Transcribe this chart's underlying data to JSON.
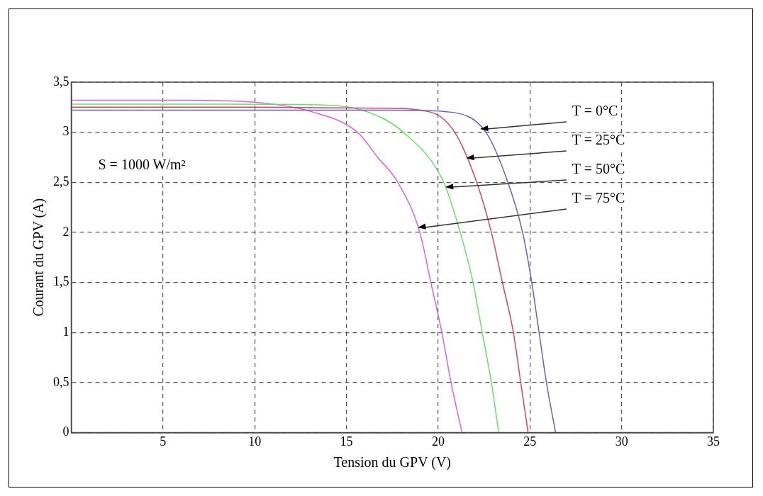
{
  "chart_data": {
    "type": "line",
    "xlabel": "Tension du GPV (V)",
    "ylabel": "Courant du GPV (A)",
    "xlim": [
      0,
      35
    ],
    "xticks": [
      5,
      10,
      15,
      20,
      25,
      30,
      35
    ],
    "ylim": [
      0,
      3.5
    ],
    "yticks": [
      0,
      {
        "value": 0.5,
        "label": "0,5"
      },
      1,
      {
        "value": 1.5,
        "label": "1,5"
      },
      2,
      {
        "value": 2.5,
        "label": "2,5"
      },
      3,
      {
        "value": 3.5,
        "label": "3,5"
      }
    ],
    "grid": true,
    "legend": false,
    "marker": "none",
    "line_style": "solid",
    "series": [
      {
        "name": "T = 0°C",
        "color": "#6b5bd6",
        "x": [
          0,
          10,
          18,
          20.7,
          22.6,
          23.8,
          24.6,
          25.1,
          25.5,
          25.9,
          26.4
        ],
        "values": [
          3.22,
          3.22,
          3.22,
          3.2,
          3.0,
          2.5,
          2.0,
          1.5,
          1.0,
          0.5,
          0
        ]
      },
      {
        "name": "T = 25°C",
        "color": "#e0405a",
        "x": [
          0,
          10,
          17,
          19.6,
          20.9,
          22.1,
          22.9,
          23.5,
          24.1,
          24.5,
          24.9
        ],
        "values": [
          3.25,
          3.25,
          3.24,
          3.2,
          3.0,
          2.5,
          2.0,
          1.5,
          1.0,
          0.5,
          0
        ]
      },
      {
        "name": "T = 50°C",
        "color": "#5ee85e",
        "x": [
          0,
          8,
          14,
          16.2,
          18.1,
          20.3,
          21.2,
          21.9,
          22.4,
          22.9,
          23.3
        ],
        "values": [
          3.28,
          3.28,
          3.27,
          3.2,
          3.0,
          2.5,
          2.0,
          1.5,
          1.0,
          0.5,
          0
        ]
      },
      {
        "name": "T = 75°C",
        "color": "#e060e0",
        "x": [
          0,
          6,
          10,
          13.2,
          15.6,
          16.7,
          17.8,
          19.0,
          19.6,
          20.2,
          20.7,
          21.3
        ],
        "values": [
          3.32,
          3.32,
          3.3,
          3.2,
          3.0,
          2.75,
          2.5,
          2.0,
          1.5,
          1.0,
          0.5,
          0
        ]
      }
    ],
    "annotations": [
      "S = 1000 W/m²"
    ]
  }
}
